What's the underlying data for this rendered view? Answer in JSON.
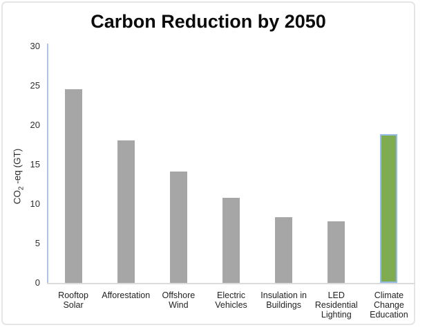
{
  "frame": {
    "background": "#FFFFFF",
    "border_color": "#E5E5E5"
  },
  "chart_data": {
    "type": "bar",
    "title": "Carbon Reduction by 2050",
    "categories": [
      "Rooftop Solar",
      "Afforestation",
      "Offshore Wind",
      "Electric Vehicles",
      "Insulation in Buildings",
      "LED Residential Lighting",
      "Climate Change Education"
    ],
    "category_display_lines": [
      [
        "Rooftop",
        "Solar"
      ],
      [
        "Afforestation"
      ],
      [
        "Offshore",
        "Wind"
      ],
      [
        "Electric",
        "Vehicles"
      ],
      [
        "Insulation in",
        "Buildings"
      ],
      [
        "LED",
        "Residential",
        "Lighting"
      ],
      [
        "Climate",
        "Change",
        "Education"
      ]
    ],
    "values": [
      24.6,
      18.1,
      14.1,
      10.8,
      8.3,
      7.8,
      18.9
    ],
    "xlabel": "",
    "ylabel": "CO2 -eq (GT)",
    "ylabel_parts": {
      "prefix": "CO",
      "sub": "2",
      "suffix": " -eq (GT)"
    },
    "ylim": [
      0,
      30
    ],
    "yticks": [
      0,
      5,
      10,
      15,
      20,
      25,
      30
    ],
    "grid": false,
    "legend": false,
    "bar_color": "#A6A6A6",
    "highlight": {
      "index": 6,
      "fill": "#7FAC50",
      "border": "#92BBE5"
    },
    "axis_line_color": "#ABC4E6",
    "baseline_color": "#DBDBDB"
  }
}
